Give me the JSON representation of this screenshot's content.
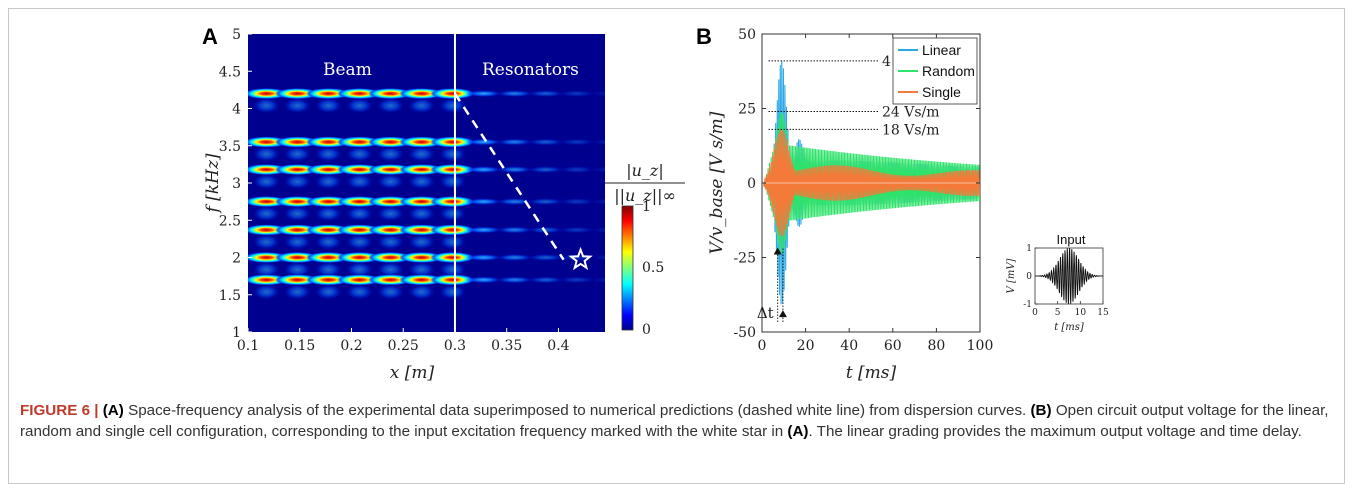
{
  "caption": {
    "lead": "FIGURE 6 |",
    "parts": [
      {
        "b": "(A)",
        "t": " Space-frequency analysis of the experimental data superimposed to numerical predictions (dashed white line) from dispersion curves. "
      },
      {
        "b": "(B)",
        "t": " Open circuit output voltage for the linear, random and single cell configuration, corresponding to the input excitation frequency marked with the white star in "
      },
      {
        "b": "(A)",
        "t": ". The linear grading provides the maximum output voltage and time delay."
      }
    ]
  },
  "colors": {
    "linear": "#2aa7e6",
    "random": "#2ee26a",
    "single": "#f47a3a",
    "map_bg": "#00008f"
  },
  "chart_data": [
    {
      "panel": "A",
      "type": "heatmap",
      "xlabel": "x [m]",
      "ylabel": "f [kHz]",
      "xticks": [
        "0.1",
        "0.15",
        "0.2",
        "0.25",
        "0.3",
        "0.35",
        "0.4"
      ],
      "yticks": [
        "1",
        "1.5",
        "2",
        "2.5",
        "3",
        "3.5",
        "4",
        "4.5",
        "5"
      ],
      "xlim": [
        0.1,
        0.445
      ],
      "ylim": [
        1,
        5
      ],
      "region_labels": [
        "Beam",
        "Resonators"
      ],
      "divider_x": 0.3,
      "bands_khz": [
        4.2,
        3.55,
        3.18,
        2.75,
        2.37,
        2.0,
        1.7
      ],
      "prediction_line": [
        [
          0.3,
          4.2
        ],
        [
          0.405,
          1.97
        ]
      ],
      "star_point": [
        0.405,
        1.97
      ],
      "colorbar": {
        "label_num": "|u_z|",
        "label_den": "||u_z||∞",
        "ticks": [
          "0",
          "0.5",
          "1"
        ]
      }
    },
    {
      "panel": "B",
      "type": "line",
      "xlabel": "t [ms]",
      "ylabel": "V/v_base [V s/m]",
      "xticks": [
        "0",
        "20",
        "40",
        "60",
        "80",
        "100"
      ],
      "yticks": [
        "-50",
        "-25",
        "0",
        "25",
        "50"
      ],
      "xlim": [
        0,
        100
      ],
      "ylim": [
        -50,
        50
      ],
      "legend": "top-right",
      "series": [
        {
          "name": "Linear",
          "peak_t": 8.5,
          "peak": 41
        },
        {
          "name": "Random",
          "peak_t": 8.5,
          "peak": 24
        },
        {
          "name": "Single",
          "peak_t": 8.5,
          "peak": 18
        }
      ],
      "annotations": [
        "41 Vs/m",
        "24 Vs/m",
        "18 Vs/m",
        "Δt"
      ],
      "inset": {
        "title": "Input",
        "xlabel": "t [ms]",
        "ylabel": "V [mV]",
        "xticks": [
          "0",
          "5",
          "10",
          "15"
        ],
        "yticks": [
          "-1",
          "0",
          "1"
        ]
      }
    }
  ]
}
